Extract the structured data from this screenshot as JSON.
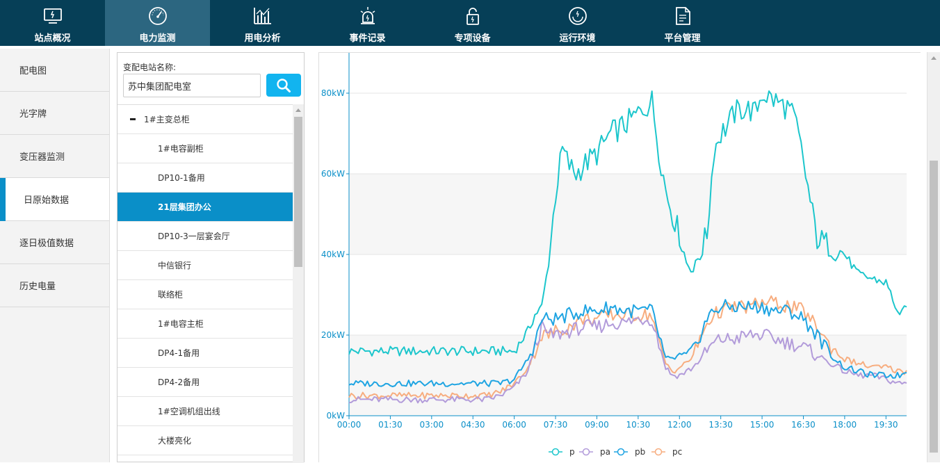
{
  "topnav": {
    "items": [
      {
        "label": "站点概况",
        "icon": "monitor-icon"
      },
      {
        "label": "电力监测",
        "icon": "gauge-icon"
      },
      {
        "label": "用电分析",
        "icon": "bar-chart-icon"
      },
      {
        "label": "事件记录",
        "icon": "alarm-light-icon"
      },
      {
        "label": "专项设备",
        "icon": "lock-icon"
      },
      {
        "label": "运行环境",
        "icon": "circle-icon"
      },
      {
        "label": "平台管理",
        "icon": "document-icon"
      }
    ],
    "active_index": 1
  },
  "sidebar": {
    "items": [
      "配电图",
      "光字牌",
      "变压器监测",
      "日原始数据",
      "逐日极值数据",
      "历史电量"
    ],
    "active_index": 3
  },
  "station_search": {
    "label": "变配电站名称:",
    "value": "苏中集团配电室"
  },
  "tree": {
    "root": "1#主变总柜",
    "items": [
      "1#电容副柜",
      "DP10-1备用",
      "21层集团办公",
      "DP10-3一层宴会厅",
      "中信银行",
      "联络柜",
      "1#电容主柜",
      "DP4-1备用",
      "DP4-2备用",
      "1#空调机组出线",
      "大楼亮化"
    ],
    "selected": "21层集团办公"
  },
  "colors": {
    "nav_bg": "#063f57",
    "nav_active": "#2c6680",
    "accent": "#0a8fc8",
    "search_button": "#12b4ef"
  },
  "chart_data": {
    "type": "line",
    "x_ticks": [
      "00:00",
      "01:30",
      "03:00",
      "04:30",
      "06:00",
      "07:30",
      "09:00",
      "10:30",
      "12:00",
      "13:30",
      "15:00",
      "16:30",
      "18:00",
      "19:30"
    ],
    "y_ticks": [
      "0kW",
      "20kW",
      "40kW",
      "60kW",
      "80kW"
    ],
    "ylim": [
      0,
      90
    ],
    "x_unit": "minutes since 00:00",
    "xlim": [
      0,
      1215
    ],
    "legend_position": "bottom",
    "series": [
      {
        "name": "p",
        "color": "#1cc6cc",
        "x": [
          0,
          60,
          120,
          180,
          240,
          300,
          330,
          360,
          390,
          405,
          420,
          435,
          450,
          465,
          480,
          495,
          510,
          540,
          570,
          600,
          630,
          660,
          675,
          690,
          705,
          720,
          735,
          750,
          780,
          795,
          810,
          825,
          840,
          855,
          870,
          885,
          900,
          930,
          960,
          975,
          990,
          1005,
          1020,
          1050,
          1080,
          1110,
          1140,
          1170,
          1185,
          1200,
          1215
        ],
        "y": [
          16,
          16,
          16,
          16,
          16,
          16,
          16,
          16,
          21,
          25,
          27,
          38,
          55,
          66,
          62,
          60,
          62,
          65,
          70,
          72,
          75,
          78,
          66,
          56,
          50,
          45,
          38,
          36,
          45,
          66,
          70,
          72,
          75,
          76,
          76,
          75,
          80,
          78,
          76,
          72,
          63,
          53,
          44,
          42,
          40,
          35,
          34,
          33,
          29,
          24,
          28
        ]
      },
      {
        "name": "pa",
        "color": "#b29bda",
        "x": [
          0,
          60,
          120,
          180,
          240,
          300,
          330,
          360,
          390,
          405,
          420,
          435,
          450,
          480,
          510,
          540,
          570,
          600,
          630,
          660,
          675,
          690,
          705,
          720,
          735,
          750,
          780,
          795,
          810,
          840,
          870,
          900,
          930,
          960,
          990,
          1020,
          1050,
          1080,
          1110,
          1140,
          1170,
          1200,
          1215
        ],
        "y": [
          4,
          4,
          4,
          4,
          4,
          4,
          5,
          7,
          11,
          17,
          22,
          20,
          20,
          21,
          22,
          22,
          23,
          23,
          24,
          24,
          18,
          12,
          10,
          10,
          11,
          12,
          16,
          18,
          19,
          19,
          20,
          20,
          19,
          18,
          17,
          15,
          13,
          11,
          10,
          10,
          9,
          8,
          8
        ]
      },
      {
        "name": "pb",
        "color": "#1ea4e2",
        "x": [
          0,
          60,
          120,
          180,
          240,
          300,
          330,
          360,
          390,
          405,
          420,
          435,
          450,
          480,
          510,
          540,
          570,
          600,
          630,
          660,
          675,
          690,
          705,
          720,
          735,
          750,
          780,
          795,
          810,
          840,
          870,
          900,
          930,
          960,
          990,
          1020,
          1050,
          1080,
          1110,
          1140,
          1170,
          1200,
          1215
        ],
        "y": [
          8,
          8,
          8,
          8,
          8,
          8,
          8,
          9,
          14,
          18,
          24,
          24,
          24,
          25,
          26,
          26,
          27,
          26,
          26,
          26,
          20,
          14,
          14,
          15,
          15,
          16,
          24,
          26,
          27,
          27,
          27,
          27,
          26,
          26,
          24,
          20,
          15,
          12,
          11,
          10,
          10,
          10,
          11
        ]
      },
      {
        "name": "pc",
        "color": "#f7ad7f",
        "x": [
          0,
          60,
          120,
          180,
          240,
          300,
          330,
          360,
          390,
          405,
          420,
          435,
          450,
          480,
          510,
          540,
          570,
          600,
          630,
          660,
          675,
          690,
          705,
          720,
          735,
          750,
          780,
          795,
          810,
          840,
          870,
          900,
          930,
          960,
          990,
          1020,
          1050,
          1080,
          1110,
          1140,
          1170,
          1200,
          1215
        ],
        "y": [
          5,
          5,
          5,
          5,
          5,
          5,
          6,
          8,
          12,
          16,
          20,
          20,
          21,
          22,
          24,
          24,
          25,
          25,
          25,
          25,
          18,
          13,
          11,
          12,
          13,
          15,
          23,
          25,
          26,
          27,
          27,
          28,
          28,
          27,
          26,
          22,
          17,
          14,
          13,
          12,
          12,
          11,
          11
        ]
      }
    ]
  }
}
